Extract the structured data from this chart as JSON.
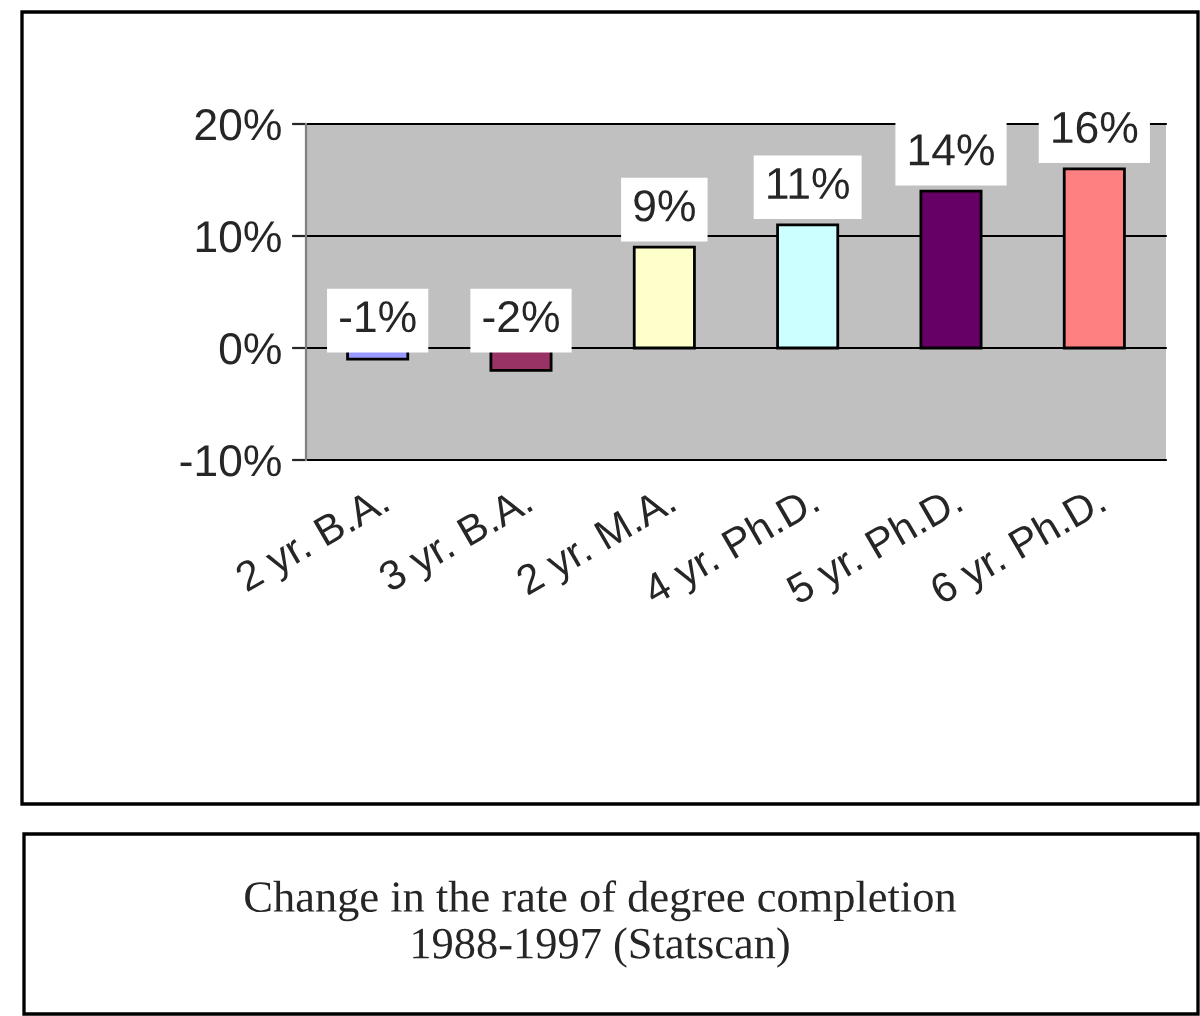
{
  "chart_data": {
    "type": "bar",
    "categories": [
      "2 yr. B.A.",
      "3 yr. B.A.",
      "2 yr. M.A.",
      "4 yr. Ph.D.",
      "5 yr. Ph.D.",
      "6 yr. Ph.D."
    ],
    "values": [
      -1,
      -2,
      9,
      11,
      14,
      16
    ],
    "colors": [
      "#9999ff",
      "#993366",
      "#ffffcc",
      "#ccffff",
      "#660066",
      "#ff8080"
    ],
    "value_labels": [
      "-1%",
      "-2%",
      "9%",
      "11%",
      "14%",
      "16%"
    ],
    "ylim": [
      -10,
      20
    ],
    "yticks": [
      {
        "value": -10,
        "label": "-10%"
      },
      {
        "value": 0,
        "label": "0%"
      },
      {
        "value": 10,
        "label": "10%"
      },
      {
        "value": 20,
        "label": "20%"
      }
    ],
    "grid": "y",
    "legend": false,
    "annotations": [
      "Change in the rate of degree completion\n1988-1997 (Statscan)"
    ]
  }
}
